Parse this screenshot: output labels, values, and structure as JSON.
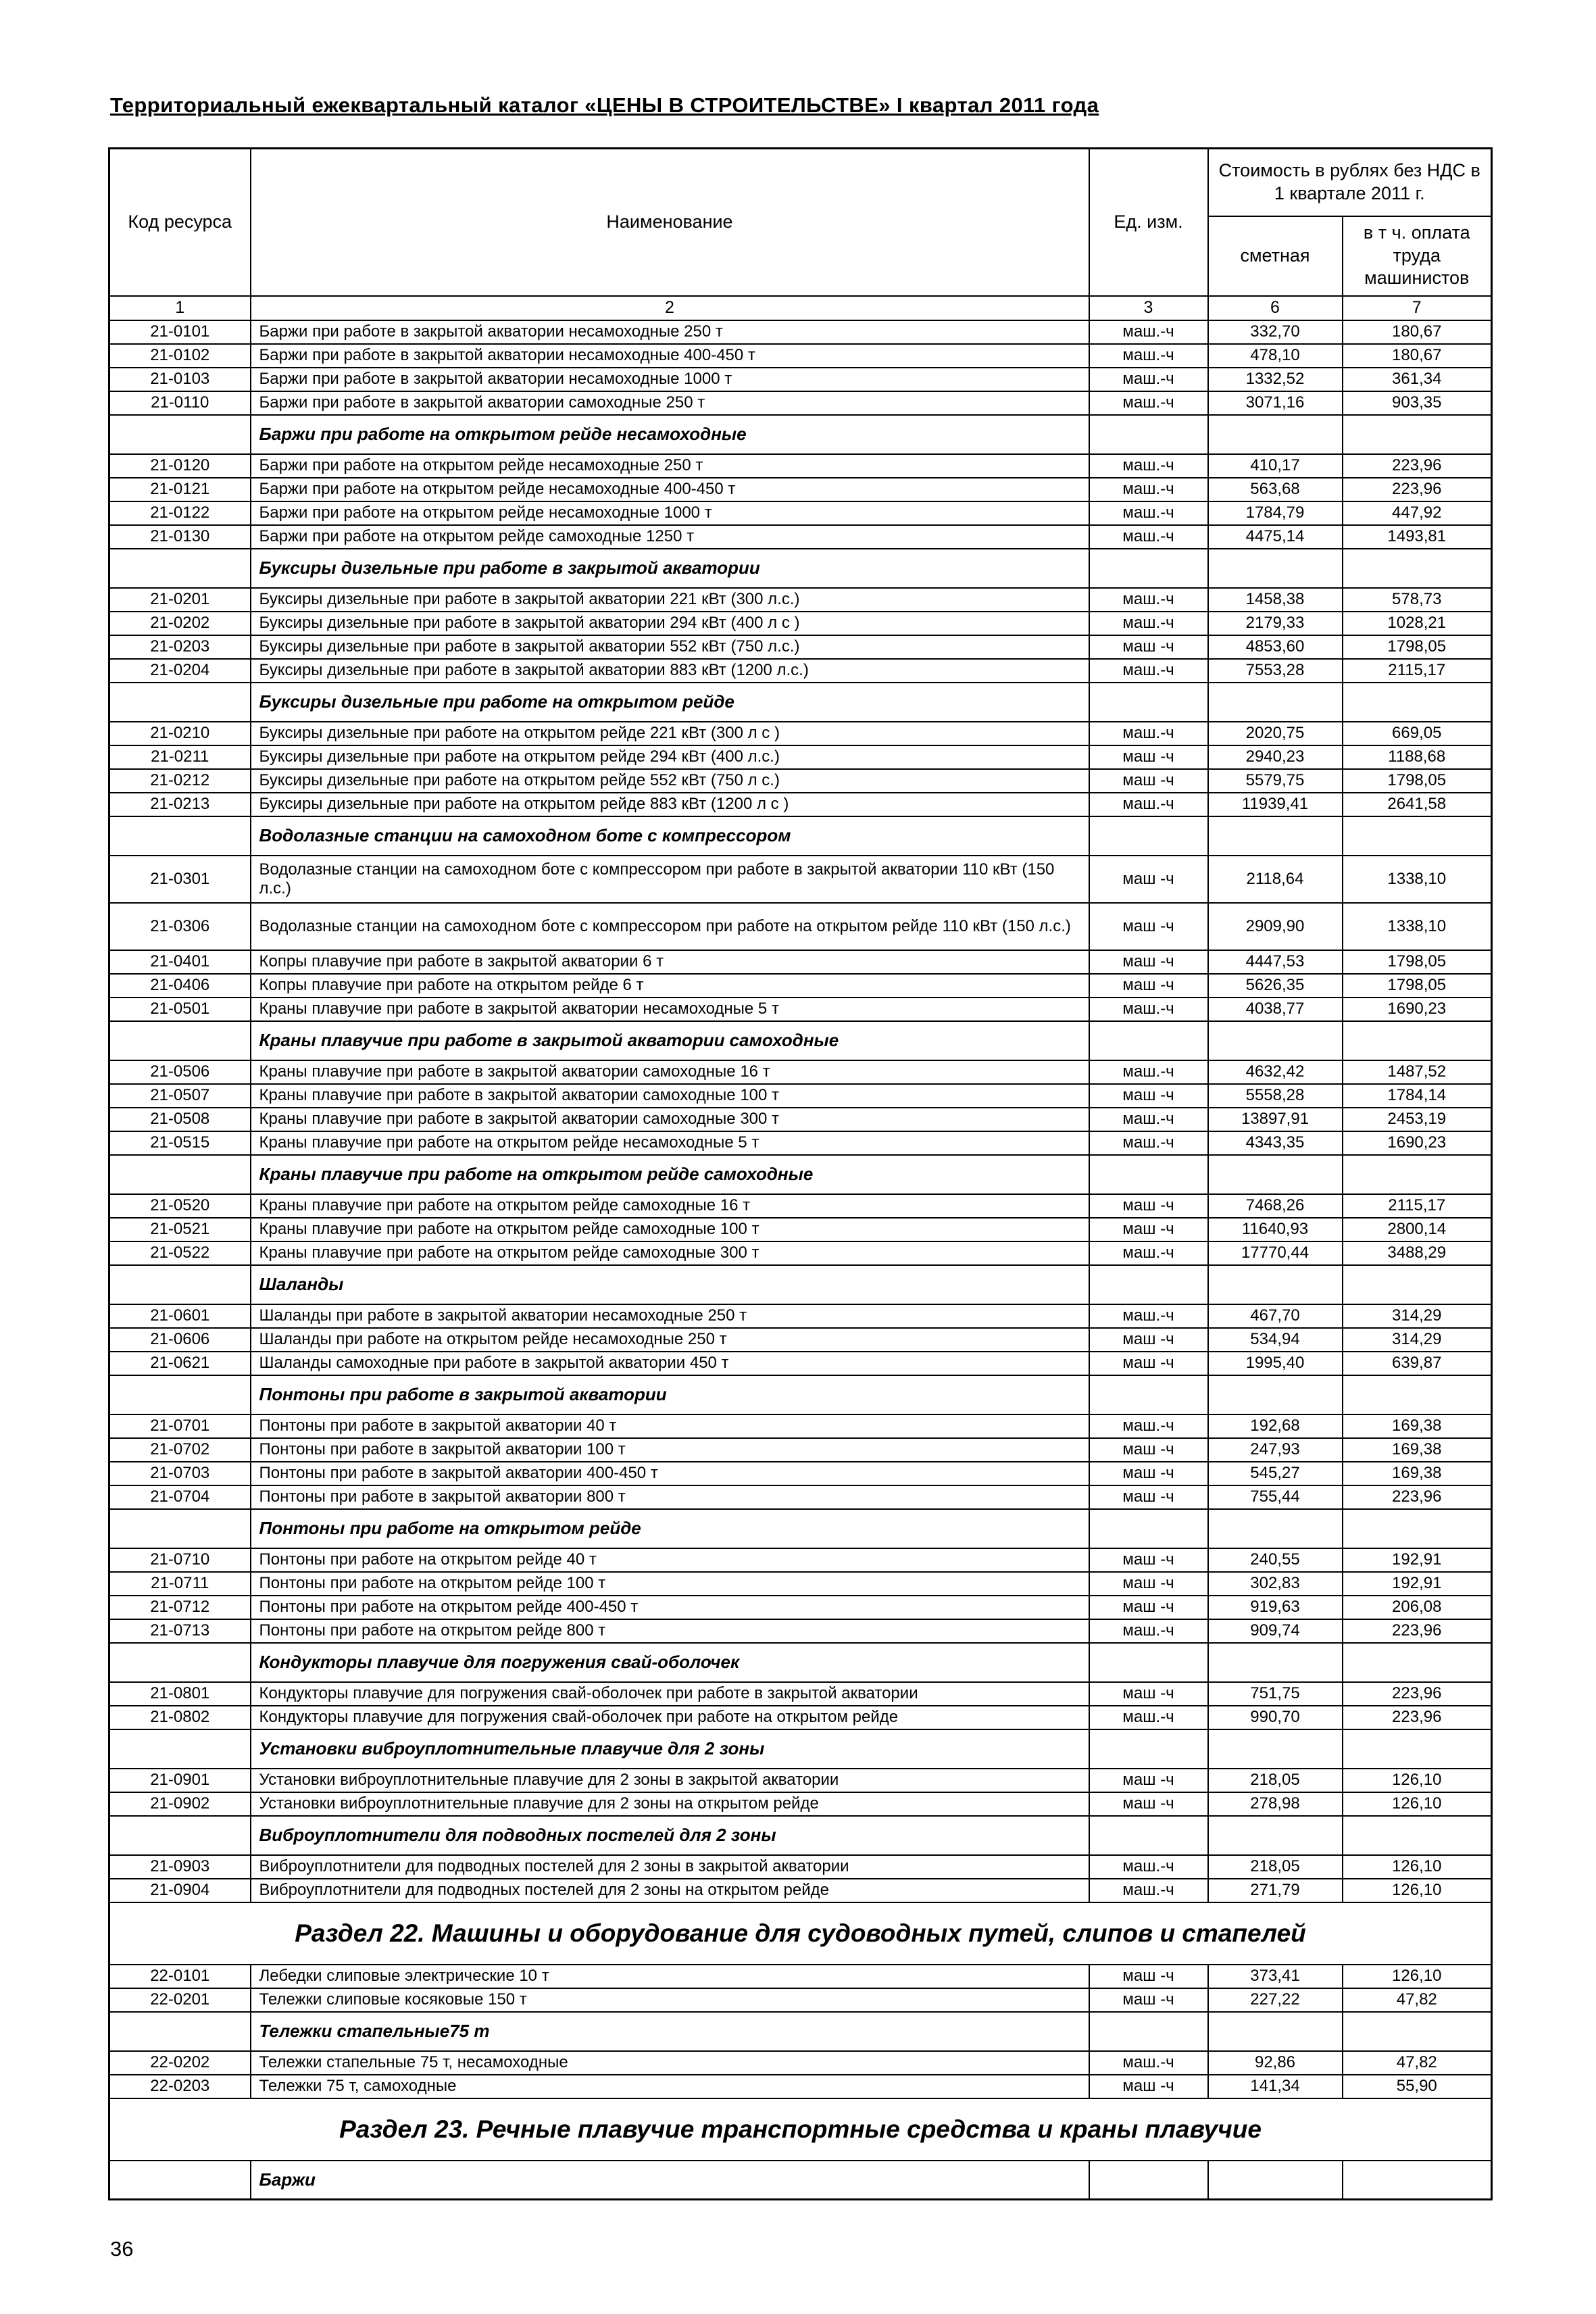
{
  "page": {
    "title": "Территориальный ежеквартальный каталог «ЦЕНЫ  В  СТРОИТЕЛЬСТВЕ» I квартал  2011 года",
    "page_number": "36"
  },
  "colors": {
    "text": "#000000",
    "paper": "#ffffff",
    "line": "#000000"
  },
  "table": {
    "headers": {
      "code": "Код ресурса",
      "name": "Наименование",
      "unit": "Ед. изм.",
      "cost_group": "Стоимость в рублях без НДС в 1 квартале 2011 г.",
      "cost_estimate": "сметная",
      "cost_labor": "в т ч. оплата труда машинистов"
    },
    "column_numbers": [
      "1",
      "2",
      "3",
      "6",
      "7"
    ],
    "rows": [
      {
        "type": "data",
        "code": "21-0101",
        "name": "Баржи при работе в закрытой акватории несамоходные 250 т",
        "unit": "маш.-ч",
        "smeta": "332,70",
        "labor": "180,67"
      },
      {
        "type": "data",
        "code": "21-0102",
        "name": "Баржи при работе в закрытой акватории несамоходные 400-450 т",
        "unit": "маш.-ч",
        "smeta": "478,10",
        "labor": "180,67"
      },
      {
        "type": "data",
        "code": "21-0103",
        "name": "Баржи при работе в закрытой акватории несамоходные 1000 т",
        "unit": "маш.-ч",
        "smeta": "1332,52",
        "labor": "361,34"
      },
      {
        "type": "data",
        "code": "21-0110",
        "name": "Баржи при работе в закрытой акватории самоходные 250 т",
        "unit": "маш.-ч",
        "smeta": "3071,16",
        "labor": "903,35"
      },
      {
        "type": "section",
        "name": "Баржи при работе на открытом рейде несамоходные"
      },
      {
        "type": "data",
        "code": "21-0120",
        "name": "Баржи при работе на открытом рейде несамоходные 250 т",
        "unit": "маш.-ч",
        "smeta": "410,17",
        "labor": "223,96"
      },
      {
        "type": "data",
        "code": "21-0121",
        "name": "Баржи при работе на открытом рейде несамоходные 400-450 т",
        "unit": "маш.-ч",
        "smeta": "563,68",
        "labor": "223,96"
      },
      {
        "type": "data",
        "code": "21-0122",
        "name": "Баржи при работе на открытом рейде несамоходные 1000 т",
        "unit": "маш.-ч",
        "smeta": "1784,79",
        "labor": "447,92"
      },
      {
        "type": "data",
        "code": "21-0130",
        "name": "Баржи при работе на открытом рейде самоходные 1250 т",
        "unit": "маш.-ч",
        "smeta": "4475,14",
        "labor": "1493,81"
      },
      {
        "type": "section",
        "name": "Буксиры дизельные при работе в закрытой акватории"
      },
      {
        "type": "data",
        "code": "21-0201",
        "name": "Буксиры дизельные при работе в закрытой акватории 221 кВт (300 л.с.)",
        "unit": "маш.-ч",
        "smeta": "1458,38",
        "labor": "578,73"
      },
      {
        "type": "data",
        "code": "21-0202",
        "name": "Буксиры дизельные при работе в закрытой акватории 294 кВт (400 л с )",
        "unit": "маш.-ч",
        "smeta": "2179,33",
        "labor": "1028,21"
      },
      {
        "type": "data",
        "code": "21-0203",
        "name": "Буксиры дизельные при работе в закрытой акватории 552 кВт (750 л.с.)",
        "unit": "маш -ч",
        "smeta": "4853,60",
        "labor": "1798,05"
      },
      {
        "type": "data",
        "code": "21-0204",
        "name": "Буксиры дизельные при работе в закрытой акватории 883 кВт (1200 л.с.)",
        "unit": "маш.-ч",
        "smeta": "7553,28",
        "labor": "2115,17"
      },
      {
        "type": "section",
        "name": "Буксиры дизельные при работе на открытом рейде"
      },
      {
        "type": "data",
        "code": "21-0210",
        "name": "Буксиры дизельные при работе на открытом рейде 221 кВт (300 л с )",
        "unit": "маш.-ч",
        "smeta": "2020,75",
        "labor": "669,05"
      },
      {
        "type": "data",
        "code": "21-0211",
        "name": "Буксиры дизельные при работе на открытом рейде 294 кВт (400 л.с.)",
        "unit": "маш -ч",
        "smeta": "2940,23",
        "labor": "1188,68"
      },
      {
        "type": "data",
        "code": "21-0212",
        "name": "Буксиры дизельные при работе на открытом рейде 552 кВт (750 л с.)",
        "unit": "маш -ч",
        "smeta": "5579,75",
        "labor": "1798,05"
      },
      {
        "type": "data",
        "code": "21-0213",
        "name": "Буксиры дизельные при работе на открытом рейде 883 кВт (1200 л с )",
        "unit": "маш.-ч",
        "smeta": "11939,41",
        "labor": "2641,58"
      },
      {
        "type": "section",
        "name": "Водолазные станции на самоходном боте с компрессором"
      },
      {
        "type": "data",
        "tall": true,
        "code": "21-0301",
        "name": "Водолазные станции на самоходном боте с компрессором при работе в закрытой акватории 110 кВт (150 л.с.)",
        "unit": "маш -ч",
        "smeta": "2118,64",
        "labor": "1338,10"
      },
      {
        "type": "data",
        "tall": true,
        "code": "21-0306",
        "name": "Водолазные станции на самоходном боте с компрессором при работе на открытом рейде 110 кВт (150 л.с.)",
        "unit": "маш -ч",
        "smeta": "2909,90",
        "labor": "1338,10"
      },
      {
        "type": "data",
        "code": "21-0401",
        "name": "Копры плавучие при работе в закрытой акватории 6 т",
        "unit": "маш -ч",
        "smeta": "4447,53",
        "labor": "1798,05"
      },
      {
        "type": "data",
        "code": "21-0406",
        "name": "Копры плавучие при работе на открытом рейде 6 т",
        "unit": "маш -ч",
        "smeta": "5626,35",
        "labor": "1798,05"
      },
      {
        "type": "data",
        "code": "21-0501",
        "name": "Краны плавучие при работе в закрытой акватории несамоходные 5 т",
        "unit": "маш.-ч",
        "smeta": "4038,77",
        "labor": "1690,23"
      },
      {
        "type": "section",
        "name": "Краны плавучие при работе в закрытой акватории самоходные"
      },
      {
        "type": "data",
        "code": "21-0506",
        "name": "Краны плавучие при работе в закрытой акватории самоходные 16 т",
        "unit": "маш.-ч",
        "smeta": "4632,42",
        "labor": "1487,52"
      },
      {
        "type": "data",
        "code": "21-0507",
        "name": "Краны плавучие при работе в закрытой акватории самоходные 100 т",
        "unit": "маш -ч",
        "smeta": "5558,28",
        "labor": "1784,14"
      },
      {
        "type": "data",
        "code": "21-0508",
        "name": "Краны плавучие при работе в закрытой акватории самоходные 300 т",
        "unit": "маш.-ч",
        "smeta": "13897,91",
        "labor": "2453,19"
      },
      {
        "type": "data",
        "code": "21-0515",
        "name": "Краны плавучие при работе на открытом рейде несамоходные 5 т",
        "unit": "маш.-ч",
        "smeta": "4343,35",
        "labor": "1690,23"
      },
      {
        "type": "section",
        "name": "Краны плавучие при работе на открытом рейде самоходные"
      },
      {
        "type": "data",
        "code": "21-0520",
        "name": "Краны плавучие при работе на открытом рейде самоходные 16 т",
        "unit": "маш -ч",
        "smeta": "7468,26",
        "labor": "2115,17"
      },
      {
        "type": "data",
        "code": "21-0521",
        "name": "Краны плавучие при работе на открытом рейде самоходные 100 т",
        "unit": "маш -ч",
        "smeta": "11640,93",
        "labor": "2800,14"
      },
      {
        "type": "data",
        "code": "21-0522",
        "name": "Краны плавучие при работе на открытом рейде самоходные 300 т",
        "unit": "маш.-ч",
        "smeta": "17770,44",
        "labor": "3488,29"
      },
      {
        "type": "section",
        "name": "Шаланды"
      },
      {
        "type": "data",
        "code": "21-0601",
        "name": "Шаланды при работе в закрытой акватории несамоходные 250 т",
        "unit": "маш.-ч",
        "smeta": "467,70",
        "labor": "314,29"
      },
      {
        "type": "data",
        "code": "21-0606",
        "name": "Шаланды при работе на открытом рейде несамоходные 250 т",
        "unit": "маш -ч",
        "smeta": "534,94",
        "labor": "314,29"
      },
      {
        "type": "data",
        "code": "21-0621",
        "name": "Шаланды самоходные при работе в закрытой акватории 450 т",
        "unit": "маш -ч",
        "smeta": "1995,40",
        "labor": "639,87"
      },
      {
        "type": "section",
        "name": "Понтоны при работе в закрытой акватории"
      },
      {
        "type": "data",
        "code": "21-0701",
        "name": "Понтоны при работе в закрытой акватории 40 т",
        "unit": "маш.-ч",
        "smeta": "192,68",
        "labor": "169,38"
      },
      {
        "type": "data",
        "code": "21-0702",
        "name": "Понтоны при работе в закрытой акватории 100 т",
        "unit": "маш -ч",
        "smeta": "247,93",
        "labor": "169,38"
      },
      {
        "type": "data",
        "code": "21-0703",
        "name": "Понтоны при работе в закрытой акватории 400-450 т",
        "unit": "маш -ч",
        "smeta": "545,27",
        "labor": "169,38"
      },
      {
        "type": "data",
        "code": "21-0704",
        "name": "Понтоны при работе в закрытой акватории 800 т",
        "unit": "маш -ч",
        "smeta": "755,44",
        "labor": "223,96"
      },
      {
        "type": "section",
        "name": "Понтоны при работе на открытом рейде"
      },
      {
        "type": "data",
        "code": "21-0710",
        "name": "Понтоны при работе на открытом рейде 40 т",
        "unit": "маш -ч",
        "smeta": "240,55",
        "labor": "192,91"
      },
      {
        "type": "data",
        "code": "21-0711",
        "name": "Понтоны при работе на открытом рейде 100 т",
        "unit": "маш -ч",
        "smeta": "302,83",
        "labor": "192,91"
      },
      {
        "type": "data",
        "code": "21-0712",
        "name": "Понтоны при работе на открытом рейде 400-450 т",
        "unit": "маш -ч",
        "smeta": "919,63",
        "labor": "206,08"
      },
      {
        "type": "data",
        "code": "21-0713",
        "name": "Понтоны при работе на открытом рейде 800 т",
        "unit": "маш.-ч",
        "smeta": "909,74",
        "labor": "223,96"
      },
      {
        "type": "section",
        "name": "Кондукторы плавучие для погружения свай-оболочек"
      },
      {
        "type": "data",
        "code": "21-0801",
        "name": "Кондукторы плавучие для погружения свай-оболочек при работе в закрытой акватории",
        "unit": "маш -ч",
        "smeta": "751,75",
        "labor": "223,96"
      },
      {
        "type": "data",
        "code": "21-0802",
        "name": "Кондукторы плавучие для погружения свай-оболочек при работе на открытом рейде",
        "unit": "маш.-ч",
        "smeta": "990,70",
        "labor": "223,96"
      },
      {
        "type": "section",
        "name": "Установки виброуплотнительные плавучие для 2 зоны"
      },
      {
        "type": "data",
        "code": "21-0901",
        "name": "Установки виброуплотнительные плавучие для 2 зоны в закрытой акватории",
        "unit": "маш -ч",
        "smeta": "218,05",
        "labor": "126,10"
      },
      {
        "type": "data",
        "code": "21-0902",
        "name": "Установки виброуплотнительные плавучие для 2 зоны на открытом рейде",
        "unit": "маш -ч",
        "smeta": "278,98",
        "labor": "126,10"
      },
      {
        "type": "section",
        "name": "Виброуплотнители для подводных постелей для 2 зоны"
      },
      {
        "type": "data",
        "code": "21-0903",
        "name": "Виброуплотнители для подводных постелей для 2 зоны в закрытой акватории",
        "unit": "маш.-ч",
        "smeta": "218,05",
        "labor": "126,10"
      },
      {
        "type": "data",
        "code": "21-0904",
        "name": "Виброуплотнители для подводных постелей для 2 зоны на открытом рейде",
        "unit": "маш.-ч",
        "smeta": "271,79",
        "labor": "126,10"
      },
      {
        "type": "razdel",
        "name": "Раздел 22. Машины и оборудование для судоводных путей, слипов и стапелей"
      },
      {
        "type": "data",
        "code": "22-0101",
        "name": "Лебедки слиповые электрические 10 т",
        "unit": "маш -ч",
        "smeta": "373,41",
        "labor": "126,10"
      },
      {
        "type": "data",
        "code": "22-0201",
        "name": "Тележки слиповые косяковые 150 т",
        "unit": "маш -ч",
        "smeta": "227,22",
        "labor": "47,82"
      },
      {
        "type": "section",
        "name": "Тележки стапельные75 т"
      },
      {
        "type": "data",
        "code": "22-0202",
        "name": "Тележки стапельные 75 т, несамоходные",
        "unit": "маш.-ч",
        "smeta": "92,86",
        "labor": "47,82"
      },
      {
        "type": "data",
        "code": "22-0203",
        "name": "Тележки 75 т, самоходные",
        "unit": "маш -ч",
        "smeta": "141,34",
        "labor": "55,90"
      },
      {
        "type": "razdel",
        "name": "Раздел 23. Речные плавучие транспортные средства и краны плавучие"
      },
      {
        "type": "section",
        "name": "Баржи"
      }
    ]
  }
}
